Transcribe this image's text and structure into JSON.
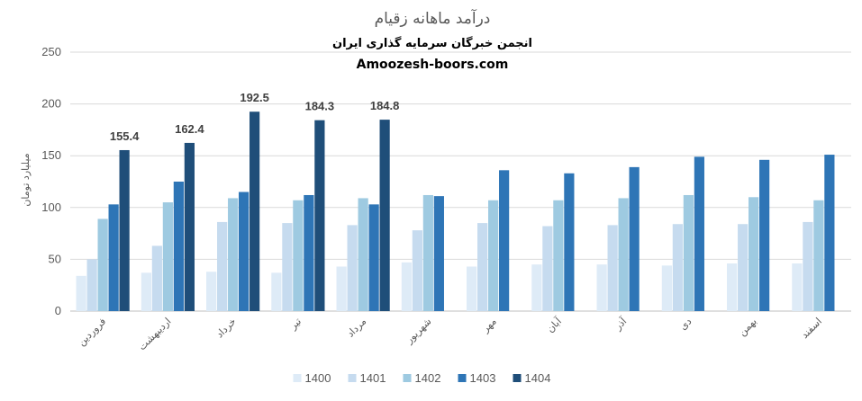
{
  "chart_data": {
    "type": "bar",
    "title": "درآمد ماهانه زقیام",
    "subtitle": "انجمن خبرگان سرمایه گذاری ایران",
    "website": "Amoozesh-boors.com",
    "ylabel": "میلیارد تومان",
    "xlabel": "",
    "ylim": [
      0,
      250
    ],
    "yticks": [
      0,
      50,
      100,
      150,
      200,
      250
    ],
    "grid": true,
    "legend_position": "bottom",
    "categories": [
      "فروردین",
      "اردیبهشت",
      "خرداد",
      "تیر",
      "مرداد",
      "شهریور",
      "مهر",
      "آبان",
      "آذر",
      "دی",
      "بهمن",
      "اسفند"
    ],
    "series": [
      {
        "name": "1400",
        "color": "#deebf7",
        "values": [
          34,
          37,
          38,
          37,
          43,
          47,
          43,
          45,
          45,
          44,
          46,
          46
        ]
      },
      {
        "name": "1401",
        "color": "#c6dbef",
        "values": [
          50,
          63,
          86,
          85,
          83,
          78,
          85,
          82,
          83,
          84,
          84,
          86
        ]
      },
      {
        "name": "1402",
        "color": "#9ecae1",
        "values": [
          89,
          105,
          109,
          107,
          109,
          112,
          107,
          107,
          109,
          112,
          110,
          107
        ]
      },
      {
        "name": "1403",
        "color": "#2e75b6",
        "values": [
          103,
          125,
          115,
          112,
          103,
          111,
          136,
          133,
          139,
          149,
          146,
          151
        ]
      },
      {
        "name": "1404",
        "color": "#1f4e79",
        "values": [
          155.4,
          162.4,
          192.5,
          184.3,
          184.8,
          null,
          null,
          null,
          null,
          null,
          null,
          null
        ]
      }
    ],
    "data_labels": {
      "series": "1404",
      "values": [
        "155.4",
        "162.4",
        "192.5",
        "184.3",
        "184.8"
      ]
    }
  }
}
